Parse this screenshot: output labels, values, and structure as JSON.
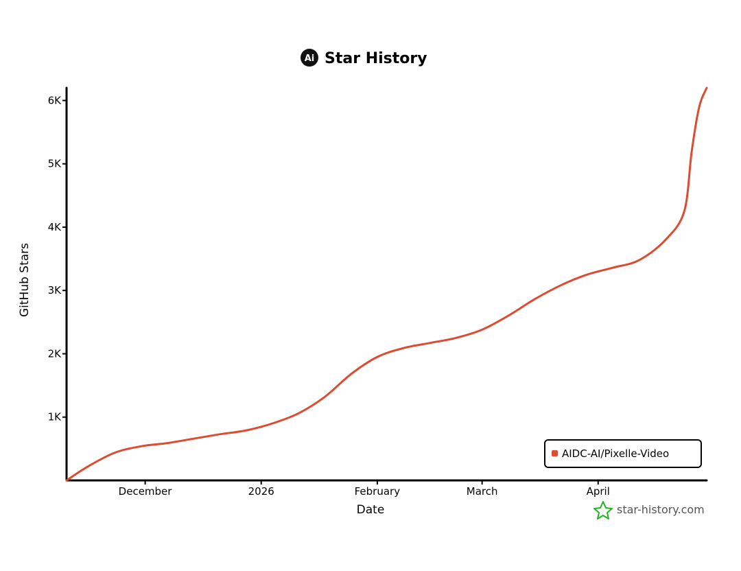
{
  "chart_data": {
    "type": "line",
    "title": "Star History",
    "logo_text": "Ai",
    "xlabel": "Date",
    "ylabel": "GitHub Stars",
    "x_ticks": [
      "December",
      "2026",
      "February",
      "March",
      "April"
    ],
    "y_ticks": [
      "1K",
      "2K",
      "3K",
      "4K",
      "5K",
      "6K"
    ],
    "ylim": [
      0,
      6200
    ],
    "xlim": [
      "2025-11-10",
      "2026-04-30"
    ],
    "grid": false,
    "legend_position": "bottom-right",
    "series": [
      {
        "name": "AIDC-AI/Pixelle-Video",
        "color": "#dd4b30",
        "points": [
          {
            "x": "2025-11-10",
            "y": 0
          },
          {
            "x": "2025-11-16",
            "y": 230
          },
          {
            "x": "2025-11-23",
            "y": 440
          },
          {
            "x": "2025-11-30",
            "y": 540
          },
          {
            "x": "2025-12-07",
            "y": 590
          },
          {
            "x": "2025-12-14",
            "y": 660
          },
          {
            "x": "2025-12-21",
            "y": 730
          },
          {
            "x": "2025-12-28",
            "y": 790
          },
          {
            "x": "2026-01-04",
            "y": 900
          },
          {
            "x": "2026-01-11",
            "y": 1060
          },
          {
            "x": "2026-01-18",
            "y": 1320
          },
          {
            "x": "2026-01-25",
            "y": 1680
          },
          {
            "x": "2026-02-01",
            "y": 1950
          },
          {
            "x": "2026-02-08",
            "y": 2090
          },
          {
            "x": "2026-02-15",
            "y": 2170
          },
          {
            "x": "2026-02-22",
            "y": 2250
          },
          {
            "x": "2026-03-01",
            "y": 2380
          },
          {
            "x": "2026-03-08",
            "y": 2600
          },
          {
            "x": "2026-03-15",
            "y": 2860
          },
          {
            "x": "2026-03-22",
            "y": 3080
          },
          {
            "x": "2026-03-29",
            "y": 3250
          },
          {
            "x": "2026-04-05",
            "y": 3360
          },
          {
            "x": "2026-04-12",
            "y": 3480
          },
          {
            "x": "2026-04-19",
            "y": 3800
          },
          {
            "x": "2026-04-24",
            "y": 4250
          },
          {
            "x": "2026-04-26",
            "y": 5200
          },
          {
            "x": "2026-04-28",
            "y": 5900
          },
          {
            "x": "2026-04-30",
            "y": 6200
          }
        ]
      }
    ]
  },
  "watermark": {
    "text": "star-history.com",
    "icon": "star-outline-icon",
    "color": "#22b422"
  }
}
